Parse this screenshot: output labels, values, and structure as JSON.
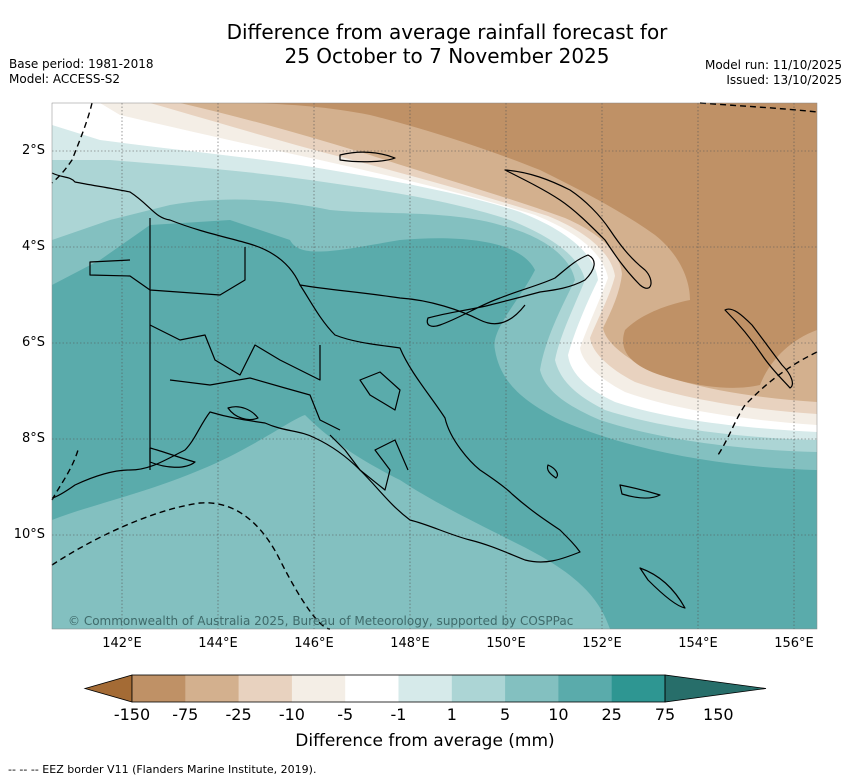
{
  "header": {
    "title_line1": "Difference from average rainfall forecast for",
    "title_line2": "25 October to 7 November 2025",
    "base_period": "Base period: 1981-2018",
    "model": "Model: ACCESS-S2",
    "model_run": "Model run: 11/10/2025",
    "issued": "Issued: 13/10/2025"
  },
  "map": {
    "region": "Papua New Guinea and surrounds",
    "copyright": "© Commonwealth of Australia 2025, Bureau of Meteorology, supported by COSPPac",
    "x_ticks": [
      "142°E",
      "144°E",
      "146°E",
      "148°E",
      "150°E",
      "152°E",
      "154°E",
      "156°E"
    ],
    "y_ticks": [
      "2°S",
      "4°S",
      "6°S",
      "8°S",
      "10°S"
    ]
  },
  "colorbar": {
    "labels": [
      "-150",
      "-75",
      "-25",
      "-10",
      "-5",
      "-1",
      "1",
      "5",
      "10",
      "25",
      "75",
      "150"
    ],
    "colors": [
      "#a46b35",
      "#bf9166",
      "#d3b08e",
      "#e8d2bf",
      "#f4eee6",
      "#ffffff",
      "#d6eaea",
      "#acd5d5",
      "#83c0c0",
      "#5aabab",
      "#2e9692",
      "#276e6a"
    ],
    "title": "Difference from average (mm)"
  },
  "footer": {
    "legend": "--  --  -- EEZ border V11 (Flanders Marine Institute, 2019)."
  }
}
